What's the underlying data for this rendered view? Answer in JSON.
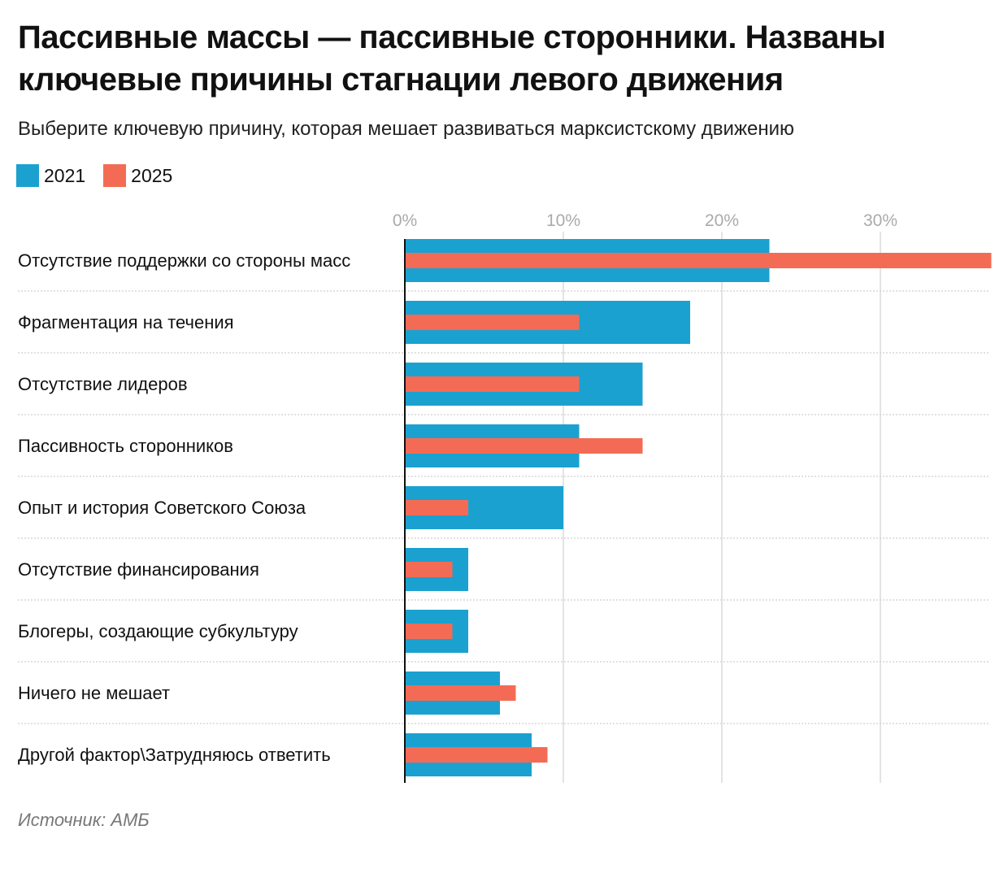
{
  "title": "Пассивные массы — пассивные сторонники. Названы ключевые причины стагнации левого движения",
  "subtitle": "Выберите ключевую причину, которая мешает развиваться марксистскому движению",
  "source": "Источник: АМБ",
  "chart_data": {
    "type": "bar",
    "orientation": "horizontal",
    "categories": [
      "Отсутствие поддержки со стороны масс",
      "Фрагментация на течения",
      "Отсутствие лидеров",
      "Пассивность сторонников",
      "Опыт и история Советского Союза",
      "Отсутствие финансирования",
      "Блогеры, создающие субкультуру",
      "Ничего не мешает",
      "Другой фактор\\Затрудняюсь ответить"
    ],
    "series": [
      {
        "name": "2021",
        "color": "#1ba1cf",
        "values": [
          23,
          18,
          15,
          11,
          10,
          4,
          4,
          6,
          8
        ]
      },
      {
        "name": "2025",
        "color": "#f46b55",
        "values": [
          37,
          11,
          11,
          15,
          4,
          3,
          3,
          7,
          9
        ]
      }
    ],
    "x_ticks": [
      "0%",
      "10%",
      "20%",
      "30%"
    ],
    "x_tick_values": [
      0,
      10,
      20,
      30
    ],
    "xlim": [
      0,
      37
    ],
    "unit": "%",
    "grid": true,
    "legend_position": "top-left"
  }
}
